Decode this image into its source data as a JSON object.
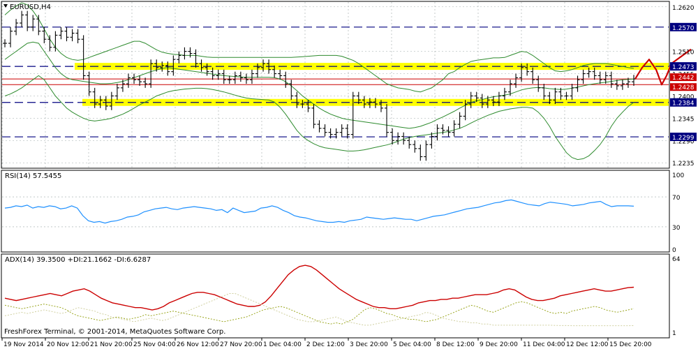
{
  "colors": {
    "background": "#ffffff",
    "grid": "#9fa8a8",
    "candle": "#000000",
    "bollinger": "#2e8b2e",
    "support_band": "#ffff00",
    "level_line": "#000080",
    "price_line": "#cc0000",
    "rsi": "#1e90ff",
    "adx": "#cc0000",
    "plus_di": "#9aa61e",
    "minus_di": "#d0d0a0",
    "axis_label_bg": "#000080",
    "axis_label_text": "#ffffff",
    "projection": "#cc0000"
  },
  "chart_data": [
    {
      "type": "line",
      "panel": "price",
      "title": "EURUSD,H4",
      "ylim": [
        1.2225,
        1.263
      ],
      "y_ticks": [
        "1.2620",
        "1.2510",
        "1.2455",
        "1.2400",
        "1.2345",
        "1.2290",
        "1.2235"
      ],
      "x_ticks": [
        "19 Nov 2014",
        "20 Nov 12:00",
        "21 Nov 20:00",
        "25 Nov 04:00",
        "26 Nov 12:00",
        "27 Nov 20:00",
        "1 Dec 04:00",
        "2 Dec 12:00",
        "3 Dec 20:00",
        "5 Dec 04:00",
        "8 Dec 12:00",
        "9 Dec 20:00",
        "11 Dec 04:00",
        "12 Dec 12:00",
        "15 Dec 20:00"
      ],
      "horizontal_levels": [
        {
          "value": 1.257,
          "label": "1.2570",
          "style": "dashed"
        },
        {
          "value": 1.2473,
          "label": "1.2473",
          "style": "dashed-highlighted"
        },
        {
          "value": 1.2384,
          "label": "1.2384",
          "style": "dashed-highlighted"
        },
        {
          "value": 1.2299,
          "label": "1.2299",
          "style": "dashed"
        }
      ],
      "price_labels": [
        {
          "value": 1.2442,
          "label": "1.2442"
        },
        {
          "value": 1.2428,
          "label": "1.2428"
        }
      ],
      "close": [
        1.253,
        1.256,
        1.258,
        1.26,
        1.257,
        1.259,
        1.256,
        1.254,
        1.252,
        1.255,
        1.256,
        1.2545,
        1.2555,
        1.254,
        1.245,
        1.241,
        1.238,
        1.239,
        1.2375,
        1.24,
        1.242,
        1.243,
        1.2445,
        1.244,
        1.2435,
        1.243,
        1.248,
        1.247,
        1.2475,
        1.246,
        1.249,
        1.25,
        1.251,
        1.2505,
        1.248,
        1.247,
        1.246,
        1.245,
        1.2455,
        1.244,
        1.244,
        1.245,
        1.2445,
        1.244,
        1.2455,
        1.247,
        1.248,
        1.2465,
        1.2455,
        1.245,
        1.243,
        1.24,
        1.238,
        1.238,
        1.237,
        1.233,
        1.232,
        1.231,
        1.2305,
        1.231,
        1.232,
        1.2305,
        1.24,
        1.239,
        1.238,
        1.2385,
        1.238,
        1.237,
        1.231,
        1.229,
        1.23,
        1.229,
        1.228,
        1.227,
        1.225,
        1.228,
        1.23,
        1.232,
        1.2315,
        1.231,
        1.233,
        1.235,
        1.238,
        1.24,
        1.2395,
        1.238,
        1.239,
        1.2385,
        1.24,
        1.241,
        1.243,
        1.2445,
        1.247,
        1.246,
        1.244,
        1.242,
        1.24,
        1.239,
        1.241,
        1.24,
        1.24,
        1.242,
        1.244,
        1.2455,
        1.246,
        1.245,
        1.244,
        1.245,
        1.243,
        1.2425,
        1.243,
        1.2435,
        1.2442
      ],
      "bollinger_upper": [
        1.26,
        1.2612,
        1.2622,
        1.263,
        1.2625,
        1.261,
        1.259,
        1.2565,
        1.254,
        1.252,
        1.2505,
        1.2495,
        1.249,
        1.2488,
        1.249,
        1.2495,
        1.25,
        1.2505,
        1.251,
        1.2515,
        1.252,
        1.2525,
        1.253,
        1.2535,
        1.2535,
        1.253,
        1.2522,
        1.2514,
        1.2508,
        1.2505,
        1.2503,
        1.2502,
        1.25,
        1.25,
        1.25,
        1.2498,
        1.2496,
        1.2495,
        1.2495,
        1.2495,
        1.2495,
        1.2495,
        1.2495,
        1.2495,
        1.2495,
        1.2495,
        1.2495,
        1.2495,
        1.2495,
        1.2495,
        1.2495,
        1.2495,
        1.2496,
        1.2497,
        1.2498,
        1.2499,
        1.25,
        1.25,
        1.25,
        1.25,
        1.2498,
        1.2493,
        1.2488,
        1.248,
        1.247,
        1.246,
        1.245,
        1.244,
        1.243,
        1.2425,
        1.242,
        1.2418,
        1.2416,
        1.2412,
        1.241,
        1.2415,
        1.242,
        1.243,
        1.244,
        1.2455,
        1.246,
        1.247,
        1.2478,
        1.2485,
        1.2488,
        1.249,
        1.2492,
        1.2494,
        1.2494,
        1.2495,
        1.25,
        1.2505,
        1.251,
        1.2508,
        1.25,
        1.249,
        1.248,
        1.247,
        1.2462,
        1.246,
        1.2462,
        1.2465,
        1.247,
        1.2475,
        1.2478,
        1.248,
        1.248,
        1.248,
        1.2478,
        1.2475,
        1.2473,
        1.247,
        1.2468
      ],
      "bollinger_middle": [
        1.249,
        1.25,
        1.251,
        1.252,
        1.253,
        1.2533,
        1.253,
        1.251,
        1.249,
        1.247,
        1.2455,
        1.2445,
        1.244,
        1.2438,
        1.2436,
        1.2434,
        1.2432,
        1.243,
        1.243,
        1.2431,
        1.2433,
        1.2436,
        1.244,
        1.2445,
        1.245,
        1.2455,
        1.246,
        1.2464,
        1.2468,
        1.247,
        1.2468,
        1.2466,
        1.2464,
        1.2462,
        1.246,
        1.2458,
        1.2456,
        1.2454,
        1.2452,
        1.245,
        1.2449,
        1.2448,
        1.2447,
        1.2446,
        1.2446,
        1.2446,
        1.2446,
        1.2446,
        1.2445,
        1.2442,
        1.2435,
        1.2425,
        1.2413,
        1.24,
        1.239,
        1.238,
        1.237,
        1.2362,
        1.2355,
        1.235,
        1.2345,
        1.2342,
        1.234,
        1.2338,
        1.2336,
        1.2334,
        1.2332,
        1.233,
        1.2328,
        1.2326,
        1.2324,
        1.2322,
        1.232,
        1.2322,
        1.2325,
        1.233,
        1.2335,
        1.2342,
        1.2348,
        1.2355,
        1.2362,
        1.237,
        1.2377,
        1.2384,
        1.2388,
        1.2391,
        1.2395,
        1.2398,
        1.24,
        1.2402,
        1.2405,
        1.241,
        1.2415,
        1.2418,
        1.242,
        1.2421,
        1.242,
        1.2418,
        1.2417,
        1.2416,
        1.2417,
        1.2419,
        1.2422,
        1.2425,
        1.2428,
        1.243,
        1.2432,
        1.2434,
        1.2436,
        1.2438,
        1.244,
        1.2441,
        1.2442
      ],
      "bollinger_lower": [
        1.24,
        1.2405,
        1.2412,
        1.242,
        1.243,
        1.244,
        1.245,
        1.244,
        1.242,
        1.24,
        1.2385,
        1.237,
        1.236,
        1.2352,
        1.2345,
        1.234,
        1.2338,
        1.234,
        1.2342,
        1.2345,
        1.235,
        1.2355,
        1.2362,
        1.237,
        1.2378,
        1.2385,
        1.2392,
        1.24,
        1.2405,
        1.241,
        1.2413,
        1.2415,
        1.2417,
        1.2418,
        1.2419,
        1.2419,
        1.2418,
        1.2416,
        1.2413,
        1.241,
        1.2406,
        1.2402,
        1.2398,
        1.2395,
        1.2393,
        1.2392,
        1.2391,
        1.239,
        1.2385,
        1.2372,
        1.2355,
        1.2335,
        1.2315,
        1.23,
        1.229,
        1.2282,
        1.2276,
        1.2272,
        1.227,
        1.2268,
        1.2266,
        1.2264,
        1.2264,
        1.2265,
        1.2267,
        1.227,
        1.2273,
        1.2276,
        1.2279,
        1.2283,
        1.2288,
        1.2293,
        1.2297,
        1.23,
        1.2302,
        1.2304,
        1.2306,
        1.2308,
        1.231,
        1.2312,
        1.2316,
        1.232,
        1.2326,
        1.2333,
        1.234,
        1.2346,
        1.2352,
        1.2357,
        1.2362,
        1.2365,
        1.2368,
        1.237,
        1.2372,
        1.2372,
        1.237,
        1.236,
        1.2345,
        1.2325,
        1.23,
        1.228,
        1.226,
        1.2248,
        1.2243,
        1.2245,
        1.2252,
        1.2265,
        1.228,
        1.23,
        1.2325,
        1.2345,
        1.236,
        1.2374,
        1.2384
      ],
      "projection": [
        1.2442,
        1.247,
        1.249,
        1.2465,
        1.2428,
        1.245,
        1.248,
        1.2515
      ]
    },
    {
      "type": "line",
      "panel": "rsi",
      "title": "RSI(14) 57.5455",
      "ylim": [
        0,
        100
      ],
      "y_ticks": [
        "100",
        "70",
        "30",
        "0"
      ],
      "levels": [
        70,
        30
      ],
      "series": [
        {
          "name": "RSI(14)",
          "values": [
            55,
            56,
            58,
            57,
            59,
            55,
            57,
            56,
            58,
            57,
            54,
            55,
            58,
            55,
            45,
            38,
            36,
            37,
            35,
            37,
            38,
            40,
            43,
            44,
            46,
            50,
            52,
            54,
            55,
            56,
            54,
            53,
            55,
            56,
            57,
            56,
            55,
            54,
            52,
            53,
            49,
            55,
            52,
            49,
            50,
            51,
            55,
            56,
            58,
            56,
            52,
            49,
            45,
            43,
            42,
            40,
            38,
            37,
            36,
            36,
            37,
            36,
            38,
            39,
            40,
            43,
            42,
            41,
            40,
            41,
            42,
            41,
            40,
            40,
            38,
            40,
            42,
            44,
            45,
            46,
            48,
            50,
            52,
            54,
            55,
            56,
            58,
            60,
            62,
            63,
            65,
            66,
            64,
            62,
            60,
            59,
            58,
            61,
            63,
            62,
            61,
            60,
            58,
            59,
            60,
            62,
            63,
            64,
            60,
            57,
            58,
            58,
            58,
            57.5455
          ]
        }
      ]
    },
    {
      "type": "line",
      "panel": "adx",
      "title": "ADX(14) 39.3500 +DI:21.1662 -DI:6.6287",
      "ylim": [
        1,
        64
      ],
      "y_ticks": [
        "64",
        "1"
      ],
      "series": [
        {
          "name": "ADX(14)",
          "values": [
            30,
            29,
            28,
            29,
            30,
            31,
            32,
            33,
            34,
            33,
            32,
            34,
            36,
            37,
            38,
            36,
            33,
            30,
            28,
            26,
            25,
            24,
            23,
            22,
            22,
            21,
            20,
            21,
            23,
            26,
            28,
            30,
            32,
            34,
            35,
            35,
            34,
            33,
            31,
            29,
            27,
            25,
            24,
            23,
            23,
            24,
            27,
            32,
            38,
            44,
            50,
            54,
            57,
            58,
            57,
            54,
            50,
            46,
            42,
            38,
            35,
            32,
            29,
            27,
            25,
            23,
            22,
            22,
            21,
            21,
            22,
            23,
            24,
            26,
            27,
            28,
            28,
            29,
            29,
            30,
            30,
            31,
            32,
            33,
            33,
            33,
            34,
            35,
            37,
            38,
            37,
            34,
            31,
            29,
            28,
            28,
            29,
            30,
            32,
            33,
            34,
            35,
            36,
            37,
            38,
            37,
            36,
            36,
            37,
            38,
            39,
            39.35
          ]
        },
        {
          "name": "+DI",
          "values": [
            24,
            23,
            22,
            21,
            22,
            23,
            24,
            25,
            24,
            23,
            22,
            20,
            17,
            15,
            14,
            13,
            12,
            11,
            12,
            13,
            14,
            13,
            12,
            13,
            14,
            16,
            15,
            16,
            17,
            18,
            19,
            18,
            17,
            16,
            15,
            14,
            13,
            12,
            11,
            10,
            11,
            12,
            13,
            14,
            16,
            18,
            20,
            21,
            22,
            23,
            22,
            20,
            18,
            16,
            14,
            12,
            10,
            9,
            8,
            9,
            8,
            10,
            12,
            16,
            20,
            22,
            21,
            19,
            17,
            16,
            14,
            13,
            12,
            12,
            11,
            10,
            11,
            12,
            14,
            16,
            18,
            20,
            22,
            24,
            23,
            21,
            19,
            18,
            20,
            22,
            24,
            26,
            27,
            26,
            24,
            22,
            20,
            18,
            17,
            18,
            17,
            19,
            20,
            21,
            22,
            23,
            22,
            20,
            19,
            18,
            19,
            20,
            21.1662
          ]
        },
        {
          "name": "-DI",
          "values": [
            15,
            16,
            17,
            18,
            17,
            18,
            19,
            20,
            19,
            18,
            17,
            18,
            20,
            22,
            21,
            20,
            19,
            17,
            16,
            14,
            13,
            12,
            11,
            10,
            11,
            12,
            13,
            12,
            11,
            12,
            14,
            16,
            18,
            20,
            22,
            24,
            26,
            28,
            30,
            32,
            34,
            34,
            32,
            30,
            28,
            26,
            24,
            22,
            20,
            18,
            16,
            14,
            12,
            11,
            10,
            10,
            11,
            12,
            13,
            14,
            12,
            10,
            9,
            8,
            7,
            7,
            8,
            9,
            10,
            11,
            12,
            13,
            14,
            15,
            16,
            18,
            17,
            15,
            13,
            12,
            11,
            10,
            10,
            9,
            9,
            8,
            8,
            7,
            7,
            7,
            7,
            7,
            7,
            7,
            7,
            7,
            7,
            7,
            6.8,
            6.7,
            6.7,
            6.6,
            6.6,
            6.6,
            6.6,
            6.6,
            6.6,
            6.6,
            6.6,
            6.6,
            6.6,
            6.6,
            6.6287
          ]
        }
      ]
    }
  ],
  "footer": {
    "copyright": "FreshForex Terminal, © 2001-2014, MetaQuotes Software Corp."
  }
}
